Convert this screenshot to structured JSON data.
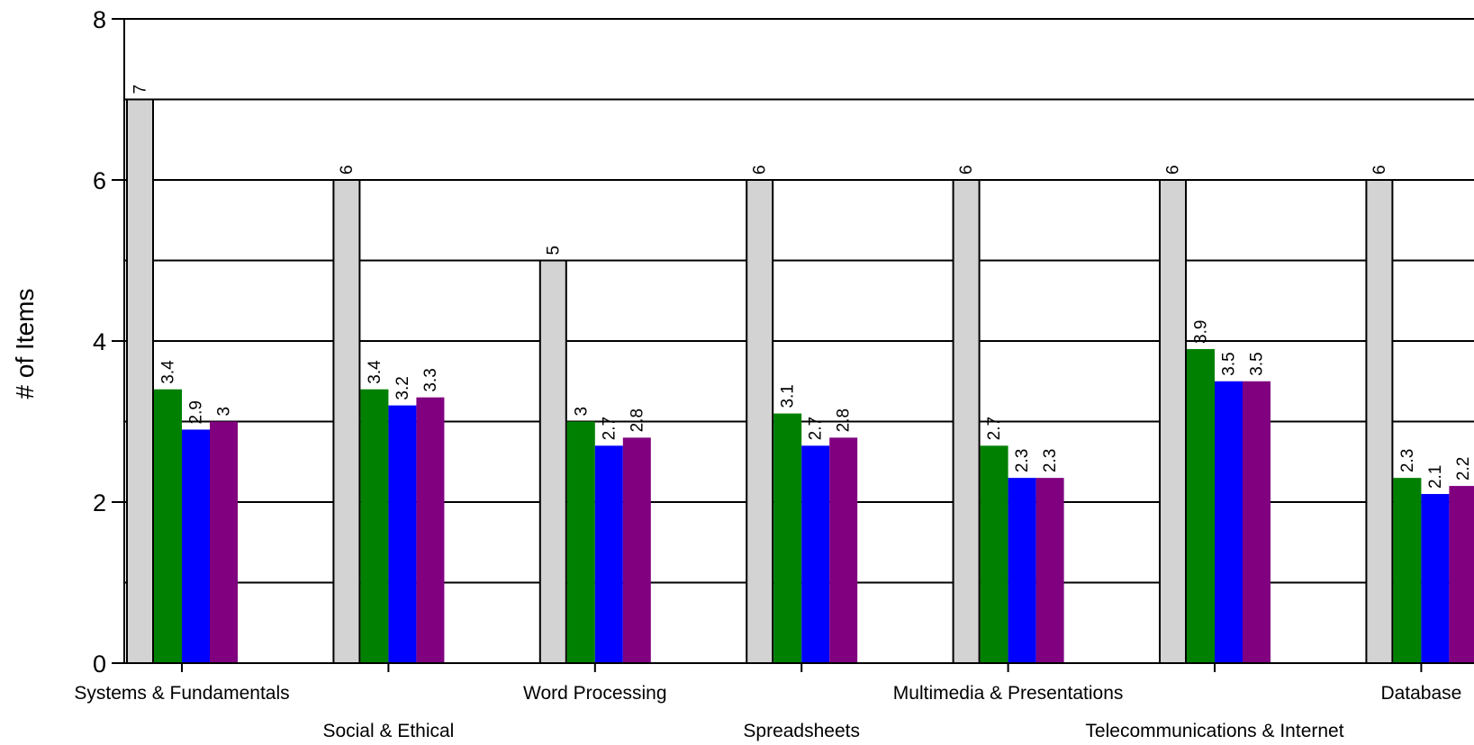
{
  "chart_data": {
    "type": "bar",
    "title": "",
    "xlabel": "",
    "ylabel": "# of Items",
    "ylim": [
      0,
      8
    ],
    "y_ticks": [
      "0",
      "2",
      "4",
      "6",
      "8"
    ],
    "grid": true,
    "categories": [
      "Systems & Fundamentals",
      "Social & Ethical",
      "Word Processing",
      "Spreadsheets",
      "Multimedia & Presentations",
      "Telecommunications & Internet",
      "Database"
    ],
    "series": [
      {
        "values": [
          7,
          6,
          5,
          6,
          6,
          6,
          6
        ],
        "labels": [
          "7",
          "6",
          "5",
          "6",
          "6",
          "6",
          "6"
        ],
        "color": "#d3d3d3"
      },
      {
        "values": [
          3.4,
          3.4,
          3,
          3.1,
          2.7,
          3.9,
          2.3
        ],
        "labels": [
          "3.4",
          "3.4",
          "3",
          "3.1",
          "2.7",
          "3.9",
          "2.3"
        ],
        "color": "#008000"
      },
      {
        "values": [
          2.9,
          3.2,
          2.7,
          2.7,
          2.3,
          3.5,
          2.1
        ],
        "labels": [
          "2.9",
          "3.2",
          "2.7",
          "2.7",
          "2.3",
          "3.5",
          "2.1"
        ],
        "color": "#0000ff"
      },
      {
        "values": [
          3,
          3.3,
          2.8,
          2.8,
          2.3,
          3.5,
          2.2
        ],
        "labels": [
          "3",
          "3.3",
          "2.8",
          "2.8",
          "2.3",
          "3.5",
          "2.2"
        ],
        "color": "#800080"
      }
    ]
  }
}
